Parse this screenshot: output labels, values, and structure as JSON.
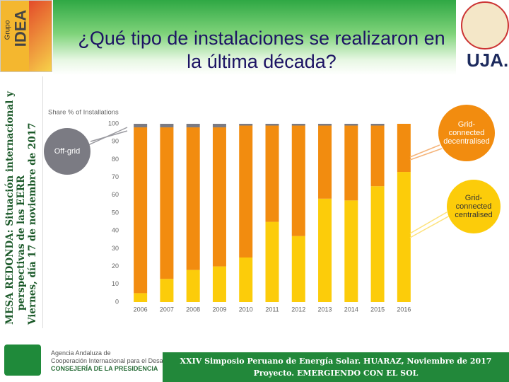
{
  "slide": {
    "title": "¿Qué tipo de instalaciones se realizaron en la última década?",
    "logo_left": [
      "Grupo",
      "IDEA"
    ],
    "logo_right": "UJA.",
    "side_text": [
      "MESA REDONDA: Situación internacional y",
      "perspectivas de las EERR",
      "Viernes, día 17 de noviembre de 2017"
    ],
    "footer_agency": [
      "Agencia Andaluza de",
      "Cooperación Internacional para el Desarrollo",
      "CONSEJERÍA DE LA PRESIDENCIA"
    ],
    "footer_event": [
      "XXIV Simposio Peruano de Energía Solar. HUARAZ, Noviembre de 2017",
      "Proyecto. EMERGIENDO CON EL SOL"
    ]
  },
  "chart_data": {
    "type": "stacked_bar",
    "y_label": "Share % of Installations",
    "categories": [
      "2006",
      "2007",
      "2008",
      "2009",
      "2010",
      "2011",
      "2012",
      "2013",
      "2014",
      "2015",
      "2016"
    ],
    "series": [
      {
        "name": "Grid-connected centralised",
        "color": "#fccc0a",
        "values": [
          5,
          13,
          18,
          20,
          25,
          45,
          37,
          58,
          57,
          65,
          73
        ]
      },
      {
        "name": "Grid-connected decentralised",
        "color": "#f28c0f",
        "values": [
          93,
          85,
          80,
          78,
          74,
          54,
          62,
          41,
          42,
          34,
          27
        ]
      },
      {
        "name": "Off-grid",
        "color": "#7b7b83",
        "values": [
          2,
          2,
          2,
          2,
          1,
          1,
          1,
          1,
          1,
          1,
          0
        ]
      }
    ],
    "ylim": [
      0,
      100
    ],
    "yticks": [
      0,
      10,
      20,
      30,
      40,
      50,
      60,
      70,
      80,
      90,
      100
    ],
    "grid": false
  }
}
